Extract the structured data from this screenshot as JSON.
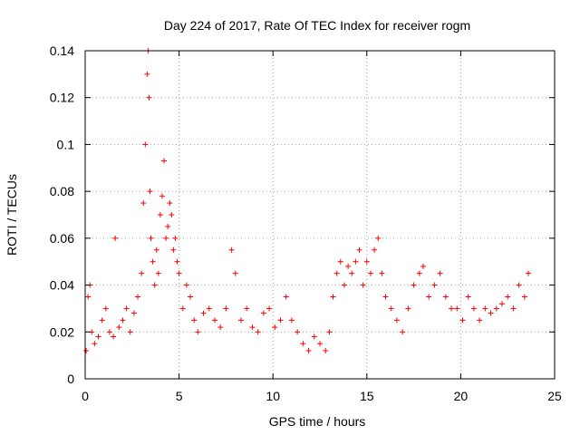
{
  "chart_data": {
    "type": "scatter",
    "title": "Day 224 of 2017, Rate Of TEC Index for receiver rogm",
    "xlabel": "GPS time / hours",
    "ylabel": "ROTI / TECUs",
    "xlim": [
      0,
      25
    ],
    "ylim": [
      0,
      0.14
    ],
    "x_ticks": [
      0,
      5,
      10,
      15,
      20,
      25
    ],
    "y_ticks": [
      0,
      0.02,
      0.04,
      0.06,
      0.08,
      0.1,
      0.12,
      0.14
    ],
    "x_tick_labels": [
      "0",
      "5",
      "10",
      "15",
      "20",
      "25"
    ],
    "y_tick_labels": [
      "0",
      "0.02",
      "0.04",
      "0.06",
      "0.08",
      "0.1",
      "0.12",
      "0.14"
    ],
    "grid": true,
    "marker": "plus",
    "marker_color": "#ff0000",
    "series": [
      {
        "x": [
          0.05,
          0.15,
          0.25,
          0.35,
          0.5,
          0.7,
          0.9,
          1.1,
          1.3,
          1.5,
          1.6,
          1.8,
          2.0,
          2.2,
          2.4,
          2.6,
          2.8,
          3.0,
          3.1,
          3.2,
          3.3,
          3.35,
          3.4,
          3.45,
          3.5,
          3.6,
          3.7,
          3.8,
          3.9,
          4.0,
          4.1,
          4.2,
          4.3,
          4.4,
          4.5,
          4.6,
          4.7,
          4.8,
          4.9,
          5.0,
          5.2,
          5.4,
          5.6,
          5.8,
          6.0,
          6.3,
          6.6,
          6.9,
          7.2,
          7.5,
          7.8,
          8.0,
          8.3,
          8.6,
          8.9,
          9.2,
          9.5,
          9.8,
          10.1,
          10.4,
          10.7,
          11.0,
          11.3,
          11.6,
          11.9,
          12.2,
          12.5,
          12.8,
          13.0,
          13.2,
          13.4,
          13.6,
          13.8,
          14.0,
          14.2,
          14.4,
          14.6,
          14.8,
          15.0,
          15.2,
          15.4,
          15.6,
          15.8,
          16.0,
          16.3,
          16.6,
          16.9,
          17.2,
          17.5,
          17.8,
          18.0,
          18.3,
          18.6,
          18.9,
          19.2,
          19.5,
          19.8,
          20.1,
          20.4,
          20.7,
          21.0,
          21.3,
          21.6,
          21.9,
          22.2,
          22.5,
          22.8,
          23.1,
          23.4,
          23.6
        ],
        "y": [
          0.012,
          0.035,
          0.04,
          0.02,
          0.015,
          0.018,
          0.025,
          0.03,
          0.02,
          0.018,
          0.06,
          0.022,
          0.025,
          0.03,
          0.02,
          0.028,
          0.035,
          0.045,
          0.075,
          0.1,
          0.13,
          0.14,
          0.12,
          0.08,
          0.06,
          0.05,
          0.04,
          0.055,
          0.045,
          0.07,
          0.078,
          0.093,
          0.06,
          0.065,
          0.075,
          0.07,
          0.055,
          0.06,
          0.05,
          0.045,
          0.03,
          0.04,
          0.035,
          0.025,
          0.02,
          0.028,
          0.03,
          0.025,
          0.022,
          0.03,
          0.055,
          0.045,
          0.025,
          0.03,
          0.022,
          0.02,
          0.028,
          0.03,
          0.022,
          0.025,
          0.035,
          0.025,
          0.02,
          0.015,
          0.012,
          0.018,
          0.015,
          0.012,
          0.02,
          0.035,
          0.045,
          0.05,
          0.04,
          0.048,
          0.045,
          0.05,
          0.055,
          0.04,
          0.05,
          0.045,
          0.055,
          0.06,
          0.045,
          0.035,
          0.03,
          0.025,
          0.02,
          0.03,
          0.04,
          0.045,
          0.048,
          0.035,
          0.04,
          0.045,
          0.035,
          0.03,
          0.03,
          0.025,
          0.035,
          0.03,
          0.025,
          0.03,
          0.028,
          0.03,
          0.032,
          0.035,
          0.03,
          0.04,
          0.035,
          0.045
        ]
      }
    ]
  }
}
